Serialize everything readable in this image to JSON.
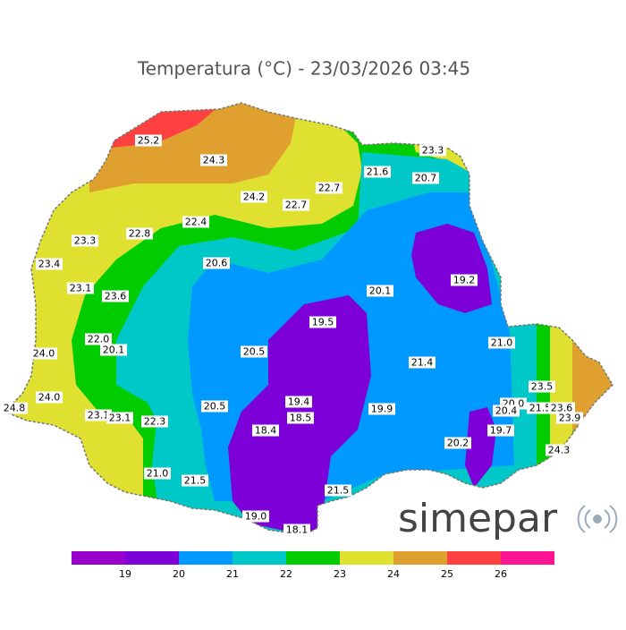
{
  "title": "Temperatura (°C) - 23/03/2026 03:45",
  "stations": [
    "25.2",
    "24.3",
    "23.3",
    "21.6",
    "20.7",
    "22.7",
    "24.2",
    "22.7",
    "22.4",
    "22.8",
    "23.3",
    "23.4",
    "20.6",
    "23.1",
    "20.1",
    "19.2",
    "23.6",
    "19.5",
    "22.0",
    "20.1",
    "20.5",
    "21.0",
    "24.0",
    "21.4",
    "23.5",
    "24.0",
    "19.4",
    "20.5",
    "19.9",
    "20.0",
    "24.8",
    "20.4",
    "21.5",
    "23.6",
    "23.1",
    "23.1",
    "22.3",
    "18.5",
    "23.9",
    "18.4",
    "19.7",
    "20.2",
    "24.3",
    "21.0",
    "21.5",
    "21.5",
    "19.0",
    "18.1"
  ],
  "colorbar": {
    "ticks": [
      19,
      20,
      21,
      22,
      23,
      24,
      25,
      26
    ],
    "colors": [
      "#9a00cc",
      "#7d00d8",
      "#0099ff",
      "#00c8c8",
      "#00cc00",
      "#e0e030",
      "#e0a030",
      "#ff4040",
      "#ff1493"
    ]
  },
  "logo": "simepar"
}
